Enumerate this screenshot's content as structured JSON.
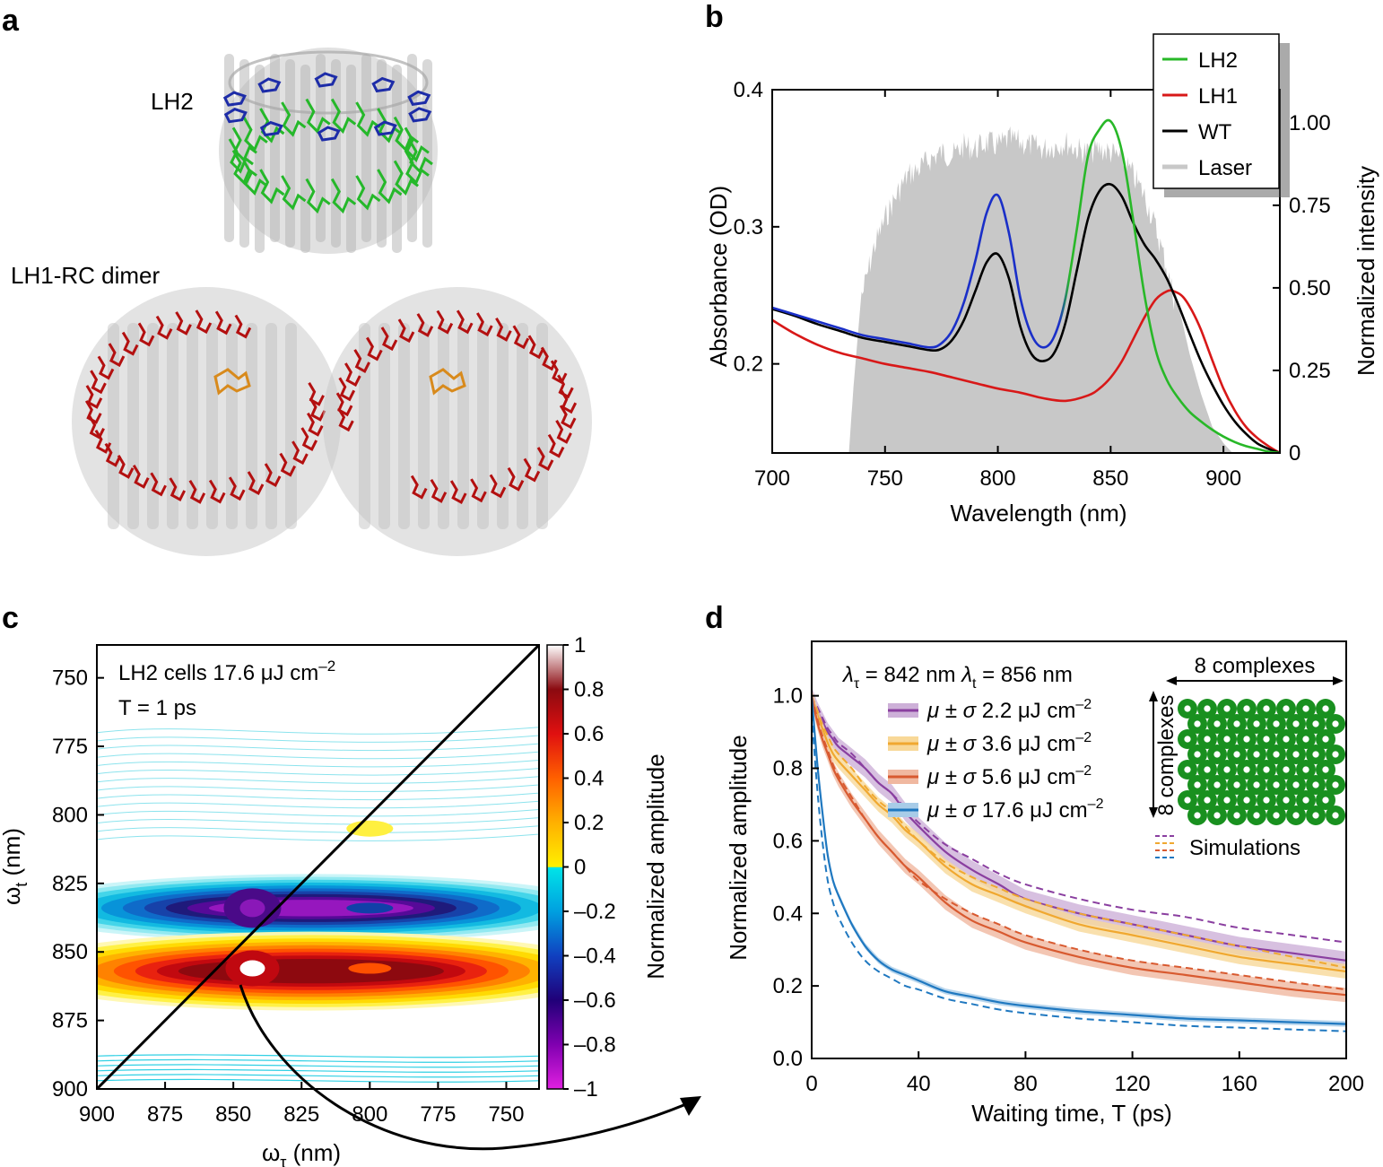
{
  "panel_labels": {
    "a": "a",
    "b": "b",
    "c": "c",
    "d": "d"
  },
  "panel_a": {
    "lh2_label": "LH2",
    "lh1_label": "LH1-RC dimer",
    "colors": {
      "protein": "#c8c8c8",
      "lh2_b800": "#1d2ca8",
      "lh2_b850": "#25b82a",
      "lh1_bchl": "#b31010",
      "rc": "#d88a1c"
    }
  },
  "chart_data": [
    {
      "panel": "b",
      "type": "line",
      "xlabel": "Wavelength (nm)",
      "ylabel_left": "Absorbance (OD)",
      "ylabel_right": "Normalized intensity",
      "xlim": [
        700,
        925
      ],
      "ylim_left": [
        0.135,
        0.4
      ],
      "ylim_right": [
        0,
        1.1
      ],
      "x_ticks": [
        700,
        750,
        800,
        850,
        900
      ],
      "x_tick_labels": [
        "700",
        "750",
        "800",
        "850",
        "900"
      ],
      "y_ticks_left": [
        0.2,
        0.3,
        0.4
      ],
      "y_tick_labels_left": [
        "0.2",
        "0.3",
        "0.4"
      ],
      "y_ticks_right": [
        0,
        0.25,
        0.5,
        0.75,
        1.0
      ],
      "y_tick_labels_right": [
        "0",
        "0.25",
        "0.50",
        "0.75",
        "1.00"
      ],
      "legend_position": "top-right",
      "legend": [
        "LH2",
        "LH1",
        "WT",
        "Laser"
      ],
      "laser": {
        "name": "Laser",
        "color": "#c8c8c8",
        "axis": "right",
        "x": [
          734,
          736,
          740,
          745,
          750,
          755,
          760,
          765,
          770,
          775,
          780,
          785,
          790,
          795,
          800,
          805,
          810,
          815,
          820,
          825,
          830,
          835,
          840,
          845,
          850,
          855,
          860,
          865,
          870,
          875,
          880,
          885,
          890,
          895,
          900,
          904
        ],
        "y": [
          0,
          0.2,
          0.52,
          0.66,
          0.75,
          0.82,
          0.88,
          0.9,
          0.93,
          0.95,
          0.94,
          0.97,
          0.96,
          0.98,
          0.97,
          0.99,
          0.98,
          0.97,
          0.96,
          0.97,
          0.98,
          0.96,
          0.95,
          0.96,
          0.95,
          0.93,
          0.88,
          0.82,
          0.72,
          0.6,
          0.45,
          0.3,
          0.18,
          0.08,
          0.03,
          0
        ]
      },
      "series": [
        {
          "name": "LH2",
          "axis": "left",
          "colors": [
            "#1a2fc8",
            "#28b828"
          ],
          "x": [
            700,
            710,
            720,
            730,
            740,
            750,
            760,
            770,
            775,
            780,
            785,
            790,
            795,
            800,
            805,
            810,
            815,
            820,
            825,
            830,
            835,
            840,
            845,
            850,
            855,
            860,
            865,
            870,
            875,
            880,
            885,
            890,
            895,
            900,
            905,
            910,
            915,
            920,
            925
          ],
          "y": [
            0.241,
            0.236,
            0.231,
            0.226,
            0.221,
            0.218,
            0.215,
            0.212,
            0.215,
            0.225,
            0.245,
            0.275,
            0.31,
            0.323,
            0.295,
            0.248,
            0.221,
            0.212,
            0.22,
            0.248,
            0.298,
            0.352,
            0.371,
            0.377,
            0.355,
            0.305,
            0.25,
            0.21,
            0.188,
            0.175,
            0.165,
            0.158,
            0.152,
            0.147,
            0.143,
            0.14,
            0.138,
            0.136,
            0.135
          ]
        },
        {
          "name": "LH1",
          "axis": "left",
          "color": "#d81818",
          "x": [
            700,
            710,
            720,
            730,
            740,
            750,
            760,
            770,
            780,
            790,
            800,
            810,
            820,
            830,
            840,
            845,
            850,
            855,
            860,
            865,
            870,
            875,
            878,
            882,
            886,
            890,
            895,
            900,
            905,
            910,
            915,
            920,
            925
          ],
          "y": [
            0.232,
            0.222,
            0.214,
            0.208,
            0.204,
            0.2,
            0.197,
            0.194,
            0.19,
            0.186,
            0.182,
            0.179,
            0.175,
            0.173,
            0.177,
            0.182,
            0.19,
            0.202,
            0.218,
            0.234,
            0.247,
            0.253,
            0.253,
            0.249,
            0.239,
            0.225,
            0.203,
            0.182,
            0.166,
            0.154,
            0.146,
            0.14,
            0.135
          ]
        },
        {
          "name": "WT",
          "axis": "left",
          "color": "#000000",
          "x": [
            700,
            710,
            720,
            730,
            740,
            750,
            760,
            770,
            775,
            780,
            785,
            790,
            795,
            800,
            805,
            810,
            815,
            820,
            825,
            830,
            835,
            840,
            845,
            850,
            855,
            860,
            865,
            870,
            875,
            880,
            885,
            890,
            895,
            900,
            905,
            910,
            915,
            920,
            925
          ],
          "y": [
            0.24,
            0.235,
            0.229,
            0.224,
            0.219,
            0.216,
            0.213,
            0.21,
            0.211,
            0.218,
            0.232,
            0.253,
            0.274,
            0.28,
            0.262,
            0.227,
            0.207,
            0.202,
            0.208,
            0.23,
            0.268,
            0.306,
            0.326,
            0.331,
            0.322,
            0.303,
            0.287,
            0.276,
            0.262,
            0.243,
            0.222,
            0.202,
            0.185,
            0.17,
            0.158,
            0.149,
            0.142,
            0.138,
            0.135
          ]
        }
      ]
    },
    {
      "panel": "c",
      "type": "heatmap",
      "xlabel": "ωτ (nm)",
      "xlabel_main": "ω",
      "xlabel_sub": "τ",
      "xlabel_rest": " (nm)",
      "ylabel": "ωt (nm)",
      "ylabel_main": "ω",
      "ylabel_sub": "t",
      "ylabel_rest": " (nm)",
      "xlim": [
        900,
        738
      ],
      "ylim": [
        900,
        738
      ],
      "x_ticks": [
        900,
        875,
        850,
        825,
        800,
        775,
        750
      ],
      "x_tick_labels": [
        "900",
        "875",
        "850",
        "825",
        "800",
        "775",
        "750"
      ],
      "y_ticks": [
        750,
        775,
        800,
        825,
        850,
        875,
        900
      ],
      "y_tick_labels": [
        "750",
        "775",
        "800",
        "825",
        "850",
        "875",
        "900"
      ],
      "annotation_line1": "LH2 cells 17.6 μJ cm",
      "annotation_line1_sup": "–2",
      "annotation_line2": "T = 1 ps",
      "colorbar_label": "Normalized amplitude",
      "colorbar_ticks": [
        1,
        0.8,
        0.6,
        0.4,
        0.2,
        0,
        -0.2,
        -0.4,
        -0.6,
        -0.8,
        -1
      ],
      "colorbar_tick_labels": [
        "1",
        "0.8",
        "0.6",
        "0.4",
        "0.2",
        "0",
        "–0.2",
        "–0.4",
        "–0.6",
        "–0.8",
        "–1"
      ],
      "colorbar_colors": [
        "#ffffff",
        "#8b0a10",
        "#e01010",
        "#ff6000",
        "#ffb000",
        "#fff000",
        "#00e4e8",
        "#00a0e0",
        "#1040c0",
        "#200078",
        "#8000b0",
        "#e020e0"
      ],
      "peaks": [
        {
          "x": 843,
          "y": 856,
          "value": 1.0
        },
        {
          "x": 843,
          "y": 834,
          "value": -1.0
        },
        {
          "x": 800,
          "y": 834,
          "value": -0.55
        },
        {
          "x": 800,
          "y": 856,
          "value": 0.6
        },
        {
          "x": 800,
          "y": 805,
          "value": 0.15
        }
      ]
    },
    {
      "panel": "d",
      "type": "line",
      "xlabel": "Waiting time, T (ps)",
      "ylabel": "Normalized amplitude",
      "xlim": [
        0,
        200
      ],
      "ylim": [
        0,
        1.15
      ],
      "x_ticks": [
        0,
        40,
        80,
        120,
        160,
        200
      ],
      "x_tick_labels": [
        "0",
        "40",
        "80",
        "120",
        "160",
        "200"
      ],
      "y_ticks": [
        0,
        0.2,
        0.4,
        0.6,
        0.8,
        1.0
      ],
      "y_tick_labels": [
        "0.0",
        "0.2",
        "0.4",
        "0.6",
        "0.8",
        "1.0"
      ],
      "legend_header_lambda_tau": "λτ = 842 nm",
      "legend_header_lambda_t": "λt = 856 nm",
      "legend_header_parts": [
        "λ",
        "τ",
        " = 842 nm  ",
        "λ",
        "t",
        " = 856 nm"
      ],
      "legend_mu": "μ ± σ",
      "legend_sup": "–2",
      "legend_position": "top-center",
      "inset_label_top": "8 complexes",
      "inset_label_side": "8 complexes",
      "simulations_label": "Simulations",
      "series": [
        {
          "name": "μ ± σ 2.2 μJ cm–2",
          "fluence": "2.2 μJ cm",
          "color": "#8a3fa0",
          "band": "#cdb0d8",
          "x": [
            0,
            2,
            4,
            6,
            8,
            10,
            15,
            20,
            25,
            30,
            35,
            40,
            50,
            60,
            70,
            80,
            100,
            120,
            140,
            160,
            180,
            200
          ],
          "y": [
            1.0,
            0.96,
            0.93,
            0.9,
            0.88,
            0.86,
            0.83,
            0.8,
            0.76,
            0.73,
            0.68,
            0.64,
            0.57,
            0.52,
            0.48,
            0.44,
            0.4,
            0.37,
            0.34,
            0.31,
            0.29,
            0.27
          ],
          "sim": [
            1.0,
            0.97,
            0.94,
            0.91,
            0.89,
            0.87,
            0.84,
            0.8,
            0.76,
            0.73,
            0.69,
            0.65,
            0.59,
            0.55,
            0.51,
            0.48,
            0.44,
            0.41,
            0.39,
            0.36,
            0.34,
            0.32
          ]
        },
        {
          "name": "μ ± σ 3.6 μJ cm–2",
          "fluence": "3.6 μJ cm",
          "color": "#f0a830",
          "band": "#f8d898",
          "x": [
            0,
            2,
            4,
            6,
            8,
            10,
            15,
            20,
            25,
            30,
            35,
            40,
            50,
            60,
            70,
            80,
            100,
            120,
            140,
            160,
            180,
            200
          ],
          "y": [
            1.0,
            0.95,
            0.91,
            0.87,
            0.84,
            0.82,
            0.78,
            0.74,
            0.7,
            0.67,
            0.63,
            0.6,
            0.53,
            0.48,
            0.45,
            0.42,
            0.37,
            0.34,
            0.31,
            0.28,
            0.26,
            0.24
          ],
          "sim": [
            1.0,
            0.96,
            0.92,
            0.89,
            0.86,
            0.84,
            0.8,
            0.75,
            0.71,
            0.68,
            0.64,
            0.6,
            0.54,
            0.5,
            0.47,
            0.44,
            0.4,
            0.37,
            0.34,
            0.31,
            0.28,
            0.25
          ]
        },
        {
          "name": "μ ± σ 5.6 μJ cm–2",
          "fluence": "5.6 μJ cm",
          "color": "#d85a30",
          "band": "#f0b8a0",
          "x": [
            0,
            2,
            4,
            6,
            8,
            10,
            15,
            20,
            25,
            30,
            35,
            40,
            50,
            60,
            70,
            80,
            100,
            120,
            140,
            160,
            180,
            200
          ],
          "y": [
            1.0,
            0.93,
            0.88,
            0.84,
            0.8,
            0.77,
            0.71,
            0.66,
            0.61,
            0.57,
            0.53,
            0.5,
            0.43,
            0.38,
            0.35,
            0.32,
            0.28,
            0.25,
            0.23,
            0.21,
            0.19,
            0.175
          ],
          "sim": [
            1.0,
            0.94,
            0.89,
            0.85,
            0.81,
            0.78,
            0.72,
            0.66,
            0.61,
            0.57,
            0.53,
            0.49,
            0.44,
            0.4,
            0.37,
            0.34,
            0.3,
            0.27,
            0.25,
            0.23,
            0.21,
            0.19
          ]
        },
        {
          "name": "μ ± σ 17.6 μJ cm–2",
          "fluence": "17.6 μJ cm",
          "color": "#1f78c0",
          "band": "#a8cce8",
          "x": [
            0,
            2,
            4,
            6,
            8,
            10,
            15,
            20,
            25,
            30,
            35,
            40,
            50,
            60,
            70,
            80,
            100,
            120,
            140,
            160,
            180,
            200
          ],
          "y": [
            1.0,
            0.82,
            0.68,
            0.56,
            0.49,
            0.45,
            0.37,
            0.31,
            0.27,
            0.245,
            0.23,
            0.215,
            0.185,
            0.17,
            0.155,
            0.145,
            0.13,
            0.12,
            0.11,
            0.105,
            0.1,
            0.095
          ],
          "sim": [
            0.95,
            0.75,
            0.6,
            0.49,
            0.43,
            0.39,
            0.32,
            0.27,
            0.24,
            0.22,
            0.2,
            0.19,
            0.165,
            0.15,
            0.135,
            0.125,
            0.11,
            0.1,
            0.09,
            0.085,
            0.08,
            0.075
          ]
        }
      ]
    }
  ]
}
